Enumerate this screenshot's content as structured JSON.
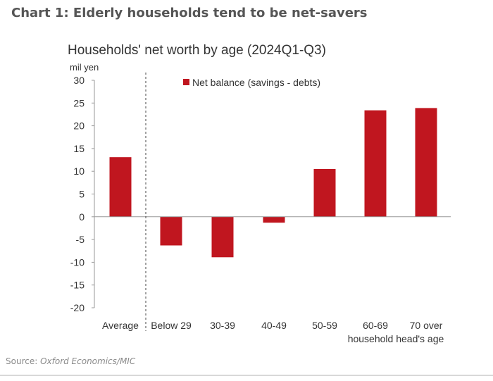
{
  "header": {
    "title": "Chart 1: Elderly households tend to be net-savers"
  },
  "source": {
    "label": "Source: ",
    "text": "Oxford Economics/MIC"
  },
  "colors": {
    "bar": "#c0161f",
    "axis": "#888888",
    "text": "#333333"
  },
  "chart_data": {
    "type": "bar",
    "title": "Households' net worth by age (2024Q1-Q3)",
    "ylabel": "mil yen",
    "xlabel": "household head's age",
    "categories": [
      "Average",
      "Below 29",
      "30-39",
      "40-49",
      "50-59",
      "60-69",
      "70 over"
    ],
    "series": [
      {
        "name": "Net balance (savings - debts)",
        "values": [
          13.1,
          -6.3,
          -8.9,
          -1.3,
          10.5,
          23.4,
          23.9
        ]
      }
    ],
    "ylim": [
      -20,
      30
    ],
    "yticks": [
      "30",
      "25",
      "20",
      "15",
      "10",
      "5",
      "0",
      "-5",
      "-10",
      "-15",
      "-20"
    ],
    "ytick_values": [
      30,
      25,
      20,
      15,
      10,
      5,
      0,
      -5,
      -10,
      -15,
      -20
    ],
    "legend": "top-center",
    "grid": false
  }
}
